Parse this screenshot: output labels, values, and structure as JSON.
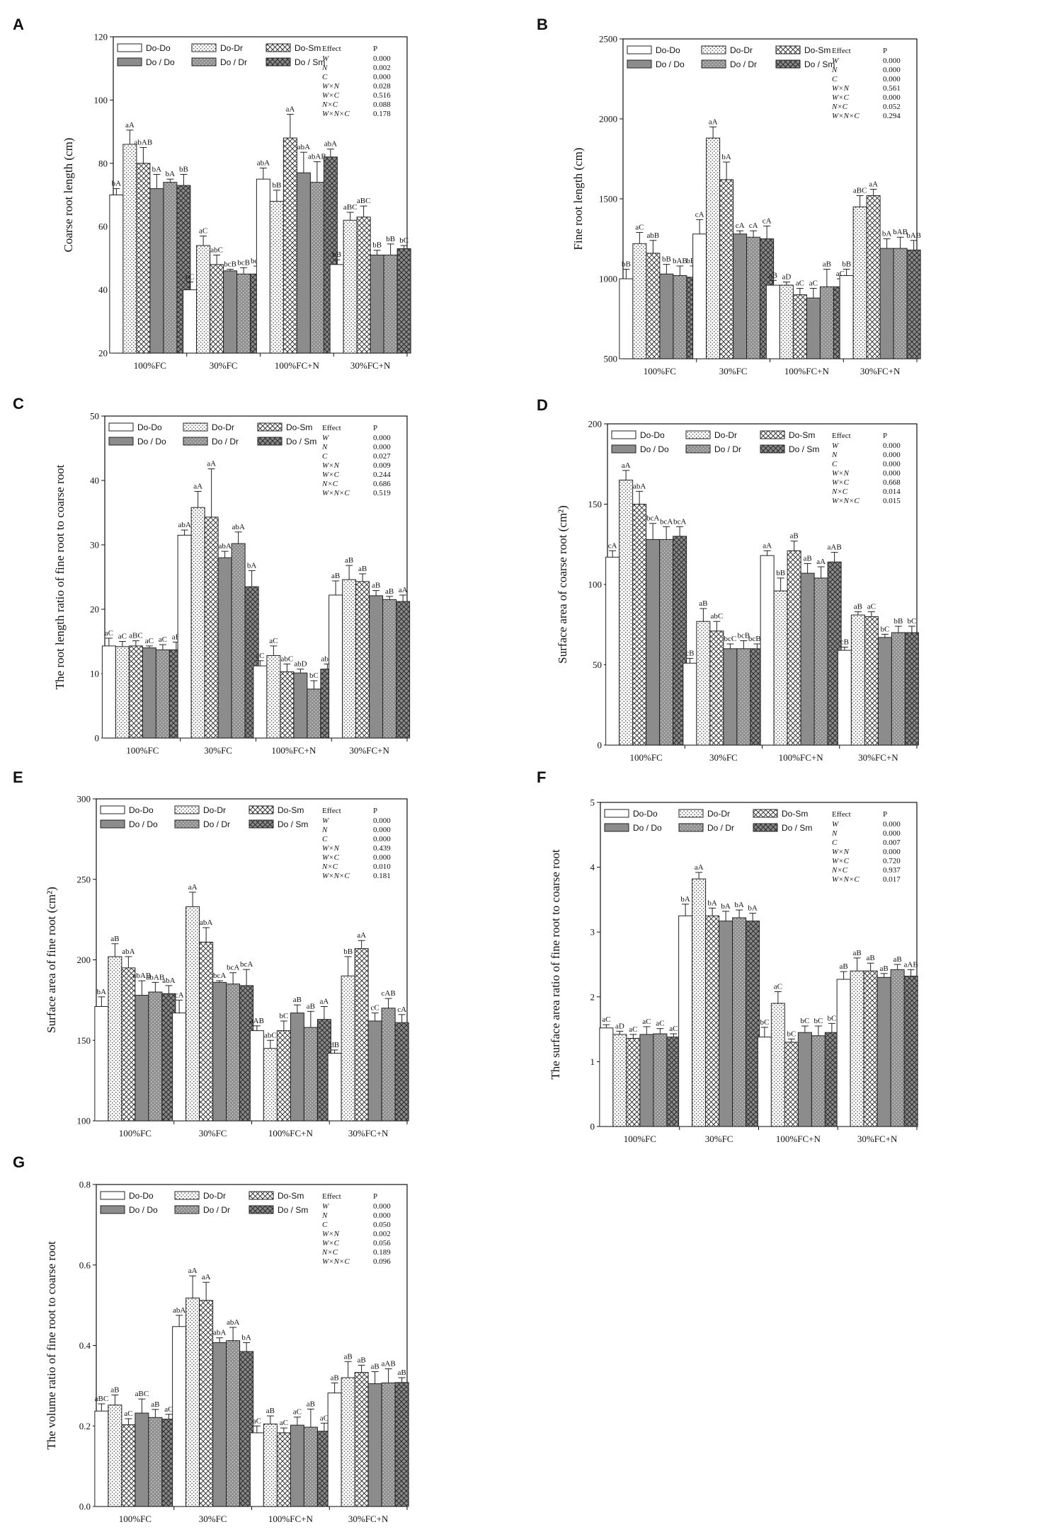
{
  "groups": [
    "100%FC",
    "30%FC",
    "100%FC+N",
    "30%FC+N"
  ],
  "legend": [
    "Do-Do",
    "Do-Dr",
    "Do-Sm",
    "Do / Do",
    "Do / Dr",
    "Do / Sm"
  ],
  "stats_header": [
    "Effect",
    "P"
  ],
  "effect_names": [
    "W",
    "N",
    "C",
    "W×N",
    "W×C",
    "N×C",
    "W×N×C"
  ],
  "chart_data": [
    {
      "id": "A",
      "type": "bar",
      "ylabel": "Coarse root length (cm)",
      "ylim": [
        20,
        120
      ],
      "yticks": [
        20,
        40,
        60,
        80,
        100,
        120
      ],
      "categories": [
        "100%FC",
        "30%FC",
        "100%FC+N",
        "30%FC+N"
      ],
      "series": [
        {
          "name": "Do-Do",
          "values": [
            70,
            40,
            75,
            48
          ],
          "errors": [
            2,
            2.5,
            3.5,
            1.5
          ],
          "labels": [
            "bA",
            "cC",
            "abA",
            "bB"
          ]
        },
        {
          "name": "Do-Dr",
          "values": [
            86,
            54,
            68,
            62
          ],
          "errors": [
            4.5,
            3,
            3.5,
            2.5
          ],
          "labels": [
            "aA",
            "aC",
            "bB",
            "aBC"
          ]
        },
        {
          "name": "Do-Sm",
          "values": [
            80,
            48,
            88,
            63
          ],
          "errors": [
            5,
            3,
            7.5,
            3.5
          ],
          "labels": [
            "abAB",
            "abC",
            "aA",
            "aBC"
          ]
        },
        {
          "name": "Do / Do",
          "values": [
            72,
            46,
            77,
            51
          ],
          "errors": [
            4.5,
            0.5,
            6.5,
            1.5
          ],
          "labels": [
            "bA",
            "bcB",
            "abA",
            "bB"
          ]
        },
        {
          "name": "Do / Dr",
          "values": [
            74,
            45,
            74,
            51
          ],
          "errors": [
            1,
            2,
            6.5,
            3.5
          ],
          "labels": [
            "bA",
            "bcB",
            "abAB",
            "bB"
          ]
        },
        {
          "name": "Do / Sm",
          "values": [
            73,
            45,
            82,
            53
          ],
          "errors": [
            3.5,
            2.5,
            2.5,
            1
          ],
          "labels": [
            "bB",
            "bcD",
            "abA",
            "bC"
          ]
        }
      ],
      "p_values": [
        "0.000",
        "0.002",
        "0.000",
        "0.028",
        "0.516",
        "0.088",
        "0.178"
      ]
    },
    {
      "id": "B",
      "type": "bar",
      "ylabel": "Fine root length (cm)",
      "ylim": [
        500,
        2500
      ],
      "yticks": [
        500,
        1000,
        1500,
        2000,
        2500
      ],
      "categories": [
        "100%FC",
        "30%FC",
        "100%FC+N",
        "30%FC+N"
      ],
      "series": [
        {
          "name": "Do-Do",
          "values": [
            1000,
            1280,
            960,
            1020
          ],
          "errors": [
            60,
            90,
            30,
            40
          ],
          "labels": [
            "bB",
            "cA",
            "aB",
            "bB"
          ]
        },
        {
          "name": "Do-Dr",
          "values": [
            1220,
            1880,
            960,
            1450
          ],
          "errors": [
            70,
            70,
            20,
            70
          ],
          "labels": [
            "aC",
            "aA",
            "aD",
            "aBC"
          ]
        },
        {
          "name": "Do-Sm",
          "values": [
            1160,
            1620,
            900,
            1520
          ],
          "errors": [
            80,
            110,
            40,
            40
          ],
          "labels": [
            "abB",
            "bA",
            "aC",
            "aA"
          ]
        },
        {
          "name": "Do / Do",
          "values": [
            1030,
            1280,
            880,
            1190
          ],
          "errors": [
            60,
            20,
            60,
            60
          ],
          "labels": [
            "bB",
            "cA",
            "aC",
            "bA"
          ]
        },
        {
          "name": "Do / Dr",
          "values": [
            1020,
            1260,
            950,
            1190
          ],
          "errors": [
            60,
            40,
            110,
            70
          ],
          "labels": [
            "bAB",
            "cA",
            "aB",
            "bAB"
          ]
        },
        {
          "name": "Do / Sm",
          "values": [
            1010,
            1250,
            950,
            1180
          ],
          "errors": [
            70,
            80,
            50,
            60
          ],
          "labels": [
            "bBC",
            "cA",
            "aC",
            "bAB"
          ]
        }
      ],
      "p_values": [
        "0.000",
        "0.000",
        "0.000",
        "0.561",
        "0.000",
        "0.052",
        "0.294"
      ]
    },
    {
      "id": "C",
      "type": "bar",
      "ylabel": "The root length ratio of fine root to coarse root",
      "ylim": [
        0,
        50
      ],
      "yticks": [
        0,
        10,
        20,
        30,
        40,
        50
      ],
      "categories": [
        "100%FC",
        "30%FC",
        "100%FC+N",
        "30%FC+N"
      ],
      "series": [
        {
          "name": "Do-Do",
          "values": [
            14.3,
            31.5,
            11.2,
            22.2
          ],
          "errors": [
            1.2,
            0.8,
            0.8,
            2.2
          ],
          "labels": [
            "aC",
            "abA",
            "aC",
            "aB"
          ]
        },
        {
          "name": "Do-Dr",
          "values": [
            14.2,
            35.8,
            12.8,
            24.6
          ],
          "errors": [
            0.8,
            2.5,
            1.5,
            2.2
          ],
          "labels": [
            "aC",
            "aA",
            "aC",
            "aB"
          ]
        },
        {
          "name": "Do-Sm",
          "values": [
            14.3,
            34.3,
            10.3,
            24.3
          ],
          "errors": [
            0.8,
            7.5,
            1.2,
            1.2
          ],
          "labels": [
            "aBC",
            "aA",
            "abC",
            "aB"
          ]
        },
        {
          "name": "Do / Do",
          "values": [
            14.0,
            28.0,
            10.1,
            22.1
          ],
          "errors": [
            0.3,
            1.0,
            0.6,
            0.8
          ],
          "labels": [
            "aC",
            "abA",
            "abD",
            "aB"
          ]
        },
        {
          "name": "Do / Dr",
          "values": [
            13.7,
            30.2,
            7.6,
            21.5
          ],
          "errors": [
            0.8,
            1.8,
            1.3,
            0.5
          ],
          "labels": [
            "aC",
            "abA",
            "bC",
            "aB"
          ]
        },
        {
          "name": "Do / Sm",
          "values": [
            13.7,
            23.5,
            10.7,
            21.2
          ],
          "errors": [
            1.2,
            2.5,
            0.8,
            1.0
          ],
          "labels": [
            "aB",
            "bA",
            "abB",
            "aA"
          ]
        }
      ],
      "p_values": [
        "0.000",
        "0.000",
        "0.027",
        "0.009",
        "0.244",
        "0.686",
        "0.519"
      ]
    },
    {
      "id": "D",
      "type": "bar",
      "ylabel": "Surface area of coarse root (cm²)",
      "ylim": [
        0,
        200
      ],
      "yticks": [
        0,
        50,
        100,
        150,
        200
      ],
      "categories": [
        "100%FC",
        "30%FC",
        "100%FC+N",
        "30%FC+N"
      ],
      "series": [
        {
          "name": "Do-Do",
          "values": [
            117,
            51,
            118,
            59
          ],
          "errors": [
            4,
            3,
            3,
            2
          ],
          "labels": [
            "cA",
            "cB",
            "aA",
            "cB"
          ]
        },
        {
          "name": "Do-Dr",
          "values": [
            165,
            77,
            96,
            81
          ],
          "errors": [
            6,
            8,
            8,
            2
          ],
          "labels": [
            "aA",
            "aB",
            "bB",
            "aB"
          ]
        },
        {
          "name": "Do-Sm",
          "values": [
            150,
            71,
            121,
            80
          ],
          "errors": [
            8,
            6,
            6,
            3
          ],
          "labels": [
            "abA",
            "abC",
            "aB",
            "aC"
          ]
        },
        {
          "name": "Do / Do",
          "values": [
            128,
            60,
            107,
            67
          ],
          "errors": [
            10,
            3,
            6,
            2
          ],
          "labels": [
            "bcA",
            "bcC",
            "aB",
            "bC"
          ]
        },
        {
          "name": "Do / Dr",
          "values": [
            128,
            60,
            104,
            70
          ],
          "errors": [
            8,
            5,
            7,
            4
          ],
          "labels": [
            "bcA",
            "bcB",
            "aA",
            "bB"
          ]
        },
        {
          "name": "Do / Sm",
          "values": [
            130,
            60,
            114,
            70
          ],
          "errors": [
            6,
            3,
            6,
            4
          ],
          "labels": [
            "bcA",
            "bcBC",
            "aAB",
            "bC"
          ]
        }
      ],
      "p_values": [
        "0.000",
        "0.000",
        "0.000",
        "0.000",
        "0.668",
        "0.014",
        "0.015"
      ]
    },
    {
      "id": "E",
      "type": "bar",
      "ylabel": "Surface area of fine root (cm²)",
      "ylim": [
        100,
        300
      ],
      "yticks": [
        100,
        150,
        200,
        250,
        300
      ],
      "categories": [
        "100%FC",
        "30%FC",
        "100%FC+N",
        "30%FC+N"
      ],
      "series": [
        {
          "name": "Do-Do",
          "values": [
            171,
            167,
            156,
            142
          ],
          "errors": [
            6,
            8,
            3,
            2
          ],
          "labels": [
            "bA",
            "cA",
            "aAB",
            "dB"
          ]
        },
        {
          "name": "Do-Dr",
          "values": [
            202,
            233,
            145,
            190
          ],
          "errors": [
            8,
            9,
            5,
            12
          ],
          "labels": [
            "aB",
            "aA",
            "abC",
            "bB"
          ]
        },
        {
          "name": "Do-Sm",
          "values": [
            195,
            211,
            156,
            207
          ],
          "errors": [
            7,
            9,
            6,
            5
          ],
          "labels": [
            "abA",
            "abA",
            "bC",
            "aA"
          ]
        },
        {
          "name": "Do / Do",
          "values": [
            178,
            186,
            167,
            162
          ],
          "errors": [
            9,
            1,
            5,
            5
          ],
          "labels": [
            "abAB",
            "bcA",
            "aB",
            "cC"
          ]
        },
        {
          "name": "Do / Dr",
          "values": [
            180,
            185,
            158,
            170
          ],
          "errors": [
            6,
            7,
            10,
            6
          ],
          "labels": [
            "abAB",
            "bcA",
            "aB",
            "cAB"
          ]
        },
        {
          "name": "Do / Sm",
          "values": [
            179,
            184,
            163,
            161
          ],
          "errors": [
            5,
            10,
            8,
            5
          ],
          "labels": [
            "abA",
            "bcA",
            "aA",
            "cA"
          ]
        }
      ],
      "p_values": [
        "0.000",
        "0.000",
        "0.000",
        "0.439",
        "0.000",
        "0.010",
        "0.181"
      ]
    },
    {
      "id": "F",
      "type": "bar",
      "ylabel": "The surface area ratio of fine root to coarse root",
      "ylim": [
        0,
        5
      ],
      "yticks": [
        0,
        1,
        2,
        3,
        4,
        5
      ],
      "categories": [
        "100%FC",
        "30%FC",
        "100%FC+N",
        "30%FC+N"
      ],
      "series": [
        {
          "name": "Do-Do",
          "values": [
            1.52,
            3.25,
            1.38,
            2.27
          ],
          "errors": [
            0.05,
            0.18,
            0.15,
            0.12
          ],
          "labels": [
            "aC",
            "bA",
            "bC",
            "aB"
          ]
        },
        {
          "name": "Do-Dr",
          "values": [
            1.42,
            3.82,
            1.9,
            2.4
          ],
          "errors": [
            0.05,
            0.1,
            0.18,
            0.2
          ],
          "labels": [
            "aD",
            "aA",
            "aC",
            "aB"
          ]
        },
        {
          "name": "Do-Sm",
          "values": [
            1.36,
            3.25,
            1.3,
            2.4
          ],
          "errors": [
            0.06,
            0.12,
            0.05,
            0.12
          ],
          "labels": [
            "aC",
            "bA",
            "bC",
            "aB"
          ]
        },
        {
          "name": "Do / Do",
          "values": [
            1.42,
            3.17,
            1.45,
            2.3
          ],
          "errors": [
            0.12,
            0.15,
            0.1,
            0.06
          ],
          "labels": [
            "aC",
            "bA",
            "bC",
            "aB"
          ]
        },
        {
          "name": "Do / Dr",
          "values": [
            1.43,
            3.22,
            1.4,
            2.42
          ],
          "errors": [
            0.08,
            0.12,
            0.15,
            0.08
          ],
          "labels": [
            "aC",
            "bA",
            "bC",
            "aB"
          ]
        },
        {
          "name": "Do / Sm",
          "values": [
            1.38,
            3.17,
            1.45,
            2.32
          ],
          "errors": [
            0.05,
            0.12,
            0.14,
            0.1
          ],
          "labels": [
            "aC",
            "bA",
            "bC",
            "aAB"
          ]
        }
      ],
      "p_values": [
        "0.000",
        "0.000",
        "0.007",
        "0.000",
        "0.720",
        "0.937",
        "0.017"
      ]
    },
    {
      "id": "G",
      "type": "bar",
      "ylabel": "The volume ratio of fine root to coarse root",
      "ylim": [
        0,
        0.8
      ],
      "yticks": [
        0.0,
        0.2,
        0.4,
        0.6,
        0.8
      ],
      "categories": [
        "100%FC",
        "30%FC",
        "100%FC+N",
        "30%FC+N"
      ],
      "series": [
        {
          "name": "Do-Do",
          "values": [
            0.237,
            0.447,
            0.183,
            0.282
          ],
          "errors": [
            0.018,
            0.028,
            0.017,
            0.025
          ],
          "labels": [
            "aBC",
            "abA",
            "aC",
            "aB"
          ]
        },
        {
          "name": "Do-Dr",
          "values": [
            0.252,
            0.518,
            0.205,
            0.32
          ],
          "errors": [
            0.025,
            0.055,
            0.02,
            0.04
          ],
          "labels": [
            "aB",
            "aA",
            "aB",
            "aB"
          ]
        },
        {
          "name": "Do-Sm",
          "values": [
            0.203,
            0.512,
            0.183,
            0.333
          ],
          "errors": [
            0.015,
            0.045,
            0.012,
            0.018
          ],
          "labels": [
            "aC",
            "aA",
            "aC",
            "aB"
          ]
        },
        {
          "name": "Do / Do",
          "values": [
            0.232,
            0.407,
            0.202,
            0.305
          ],
          "errors": [
            0.035,
            0.012,
            0.02,
            0.03
          ],
          "labels": [
            "aBC",
            "abA",
            "aC",
            "aB"
          ]
        },
        {
          "name": "Do / Dr",
          "values": [
            0.221,
            0.412,
            0.197,
            0.307
          ],
          "errors": [
            0.02,
            0.033,
            0.045,
            0.035
          ],
          "labels": [
            "aB",
            "abA",
            "aB",
            "aAB"
          ]
        },
        {
          "name": "Do / Sm",
          "values": [
            0.217,
            0.385,
            0.187,
            0.308
          ],
          "errors": [
            0.012,
            0.022,
            0.02,
            0.012
          ],
          "labels": [
            "aC",
            "bA",
            "aC",
            "aB"
          ]
        }
      ],
      "p_values": [
        "0.000",
        "0.000",
        "0.050",
        "0.002",
        "0.056",
        "0.189",
        "0.096"
      ]
    }
  ]
}
